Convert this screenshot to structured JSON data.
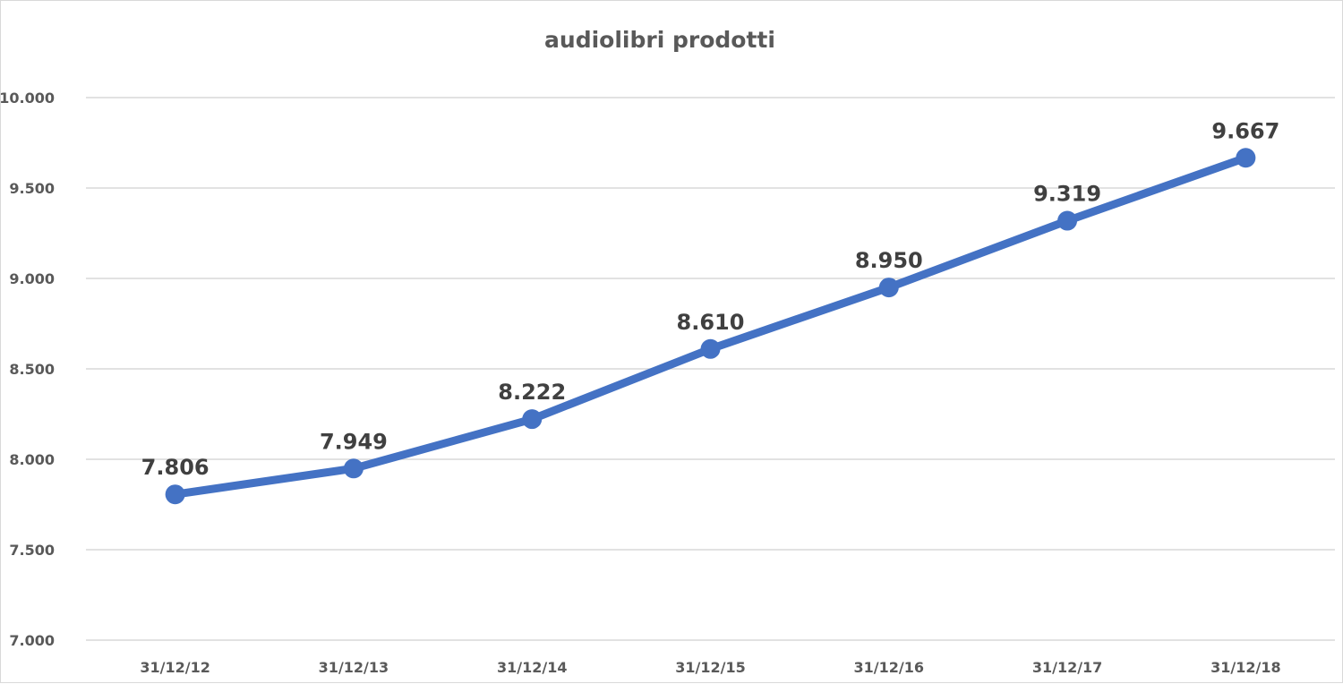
{
  "chart_data": {
    "type": "line",
    "title": "audiolibri prodotti",
    "xlabel": "",
    "ylabel": "",
    "categories": [
      "31/12/12",
      "31/12/13",
      "31/12/14",
      "31/12/15",
      "31/12/16",
      "31/12/17",
      "31/12/18"
    ],
    "series": [
      {
        "values": [
          7806,
          7949,
          8222,
          8610,
          8950,
          9319,
          9667
        ],
        "data_labels": [
          "7.806",
          "7.949",
          "8.222",
          "8.610",
          "8.950",
          "9.319",
          "9.667"
        ],
        "color": "#4472c4"
      }
    ],
    "ylim": [
      7000,
      10000
    ],
    "yticks": [
      7000,
      7500,
      8000,
      8500,
      9000,
      9500,
      10000
    ],
    "ytick_labels": [
      "7.000",
      "7.500",
      "8.000",
      "8.500",
      "9.000",
      "9.500",
      "10.000"
    ],
    "grid": true,
    "legend": "none",
    "colors": {
      "line": "#4472c4",
      "grid": "#d9d9d9",
      "axis_text": "#595959",
      "label_text": "#404040"
    }
  }
}
